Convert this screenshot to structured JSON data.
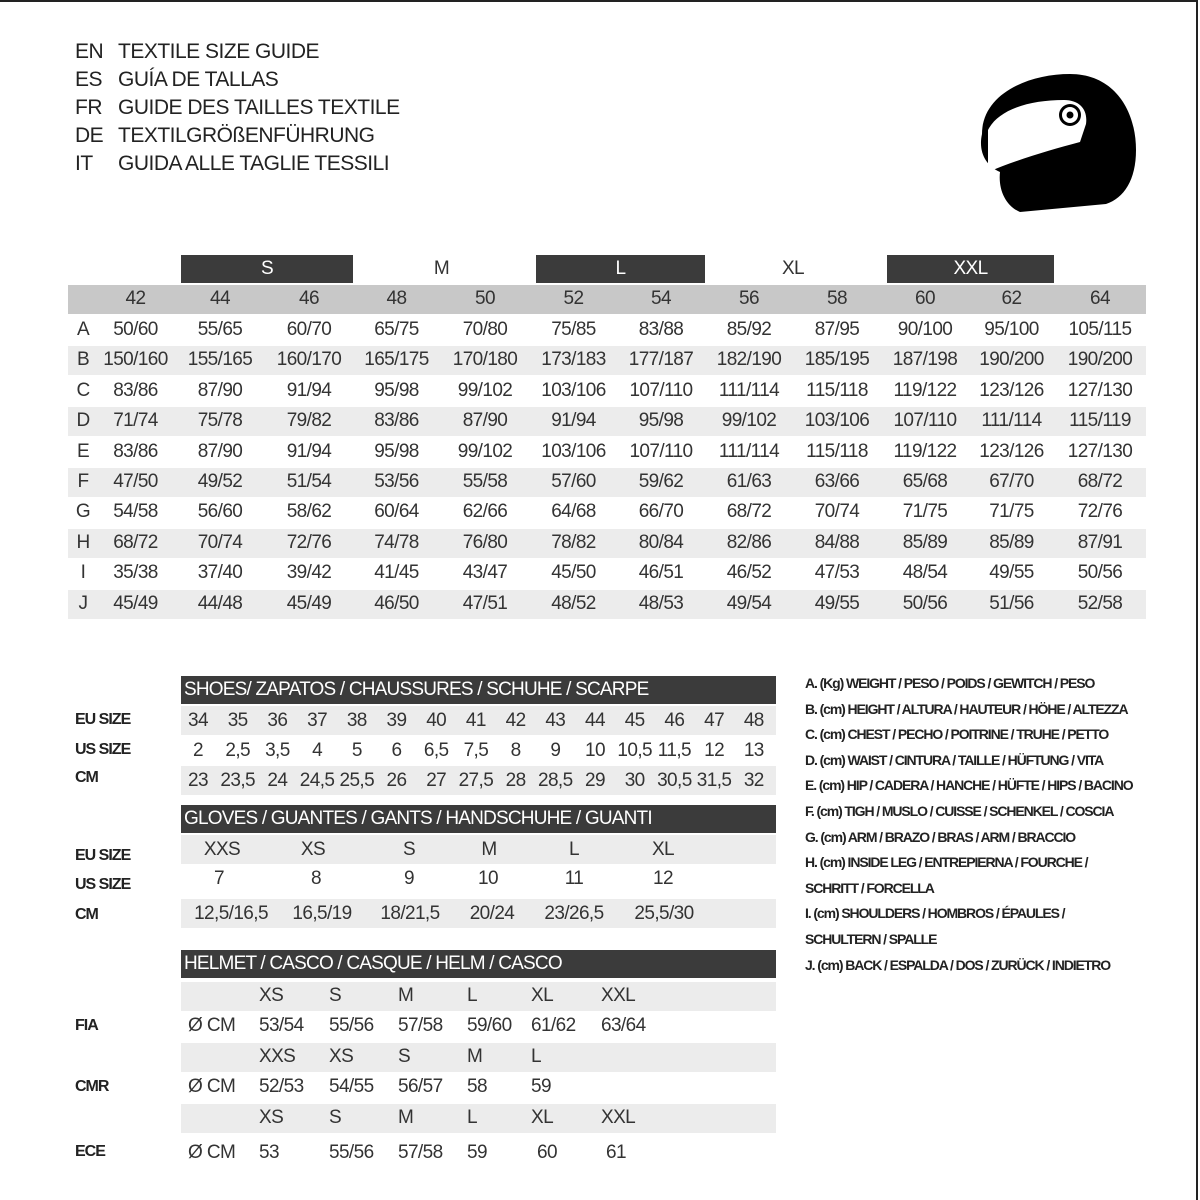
{
  "title_lines": [
    {
      "code": "EN",
      "text": "TEXTILE SIZE GUIDE"
    },
    {
      "code": "ES",
      "text": "GUÍA DE TALLAS"
    },
    {
      "code": "FR",
      "text": "GUIDE DES TAILLES TEXTILE"
    },
    {
      "code": "DE",
      "text": "TEXTILGRÖßENFÜHRUNG"
    },
    {
      "code": "IT",
      "text": "GUIDA ALLE TAGLIE TESSILI"
    }
  ],
  "icon": "helmet-icon",
  "textile": {
    "size_groups": [
      "S",
      "M",
      "L",
      "XL",
      "XXL"
    ],
    "sizes": [
      "42",
      "44",
      "46",
      "48",
      "50",
      "52",
      "54",
      "56",
      "58",
      "60",
      "62",
      "64"
    ],
    "rows": [
      {
        "label": "A",
        "values": [
          "50/60",
          "55/65",
          "60/70",
          "65/75",
          "70/80",
          "75/85",
          "83/88",
          "85/92",
          "87/95",
          "90/100",
          "95/100",
          "105/115"
        ]
      },
      {
        "label": "B",
        "values": [
          "150/160",
          "155/165",
          "160/170",
          "165/175",
          "170/180",
          "173/183",
          "177/187",
          "182/190",
          "185/195",
          "187/198",
          "190/200",
          "190/200"
        ]
      },
      {
        "label": "C",
        "values": [
          "83/86",
          "87/90",
          "91/94",
          "95/98",
          "99/102",
          "103/106",
          "107/110",
          "111/114",
          "115/118",
          "119/122",
          "123/126",
          "127/130"
        ]
      },
      {
        "label": "D",
        "values": [
          "71/74",
          "75/78",
          "79/82",
          "83/86",
          "87/90",
          "91/94",
          "95/98",
          "99/102",
          "103/106",
          "107/110",
          "111/114",
          "115/119"
        ]
      },
      {
        "label": "E",
        "values": [
          "83/86",
          "87/90",
          "91/94",
          "95/98",
          "99/102",
          "103/106",
          "107/110",
          "111/114",
          "115/118",
          "119/122",
          "123/126",
          "127/130"
        ]
      },
      {
        "label": "F",
        "values": [
          "47/50",
          "49/52",
          "51/54",
          "53/56",
          "55/58",
          "57/60",
          "59/62",
          "61/63",
          "63/66",
          "65/68",
          "67/70",
          "68/72"
        ]
      },
      {
        "label": "G",
        "values": [
          "54/58",
          "56/60",
          "58/62",
          "60/64",
          "62/66",
          "64/68",
          "66/70",
          "68/72",
          "70/74",
          "71/75",
          "71/75",
          "72/76"
        ]
      },
      {
        "label": "H",
        "values": [
          "68/72",
          "70/74",
          "72/76",
          "74/78",
          "76/80",
          "78/82",
          "80/84",
          "82/86",
          "84/88",
          "85/89",
          "85/89",
          "87/91"
        ]
      },
      {
        "label": "I",
        "values": [
          "35/38",
          "37/40",
          "39/42",
          "41/45",
          "43/47",
          "45/50",
          "46/51",
          "46/52",
          "47/53",
          "48/54",
          "49/55",
          "50/56"
        ]
      },
      {
        "label": "J",
        "values": [
          "45/49",
          "44/48",
          "45/49",
          "46/50",
          "47/51",
          "48/52",
          "48/53",
          "49/54",
          "49/55",
          "50/56",
          "51/56",
          "52/58"
        ]
      }
    ]
  },
  "shoes": {
    "title": "SHOES/ ZAPATOS / CHAUSSURES / SCHUHE / SCARPE",
    "rows": [
      {
        "label": "EU SIZE",
        "values": [
          "34",
          "35",
          "36",
          "37",
          "38",
          "39",
          "40",
          "41",
          "42",
          "43",
          "44",
          "45",
          "46",
          "47",
          "48"
        ]
      },
      {
        "label": "US SIZE",
        "values": [
          "2",
          "2,5",
          "3,5",
          "4",
          "5",
          "6",
          "6,5",
          "7,5",
          "8",
          "9",
          "10",
          "10,5",
          "11,5",
          "12",
          "13"
        ]
      },
      {
        "label": "CM",
        "values": [
          "23",
          "23,5",
          "24",
          "24,5",
          "25,5",
          "26",
          "27",
          "27,5",
          "28",
          "28,5",
          "29",
          "30",
          "30,5",
          "31,5",
          "32"
        ]
      }
    ]
  },
  "gloves": {
    "title": "GLOVES / GUANTES / GANTS / HANDSCHUHE / GUANTI",
    "rows": [
      {
        "label": "EU SIZE",
        "values": [
          "XXS",
          "XS",
          "S",
          "M",
          "L",
          "XL"
        ]
      },
      {
        "label": "US SIZE",
        "values": [
          "7",
          "8",
          "9",
          "10",
          "11",
          "12"
        ]
      },
      {
        "label": "CM",
        "values": [
          "12,5/16,5",
          "16,5/19",
          "18/21,5",
          "20/24",
          "23/26,5",
          "25,5/30"
        ]
      }
    ]
  },
  "helmet": {
    "title": "HELMET / CASCO / CASQUE / HELM / CASCO",
    "standards": [
      {
        "label": "FIA",
        "unit": "Ø CM",
        "sizes": [
          "XS",
          "S",
          "M",
          "L",
          "XL",
          "XXL"
        ],
        "values": [
          "53/54",
          "55/56",
          "57/58",
          "59/60",
          "61/62",
          "63/64"
        ]
      },
      {
        "label": "CMR",
        "unit": "Ø CM",
        "sizes": [
          "XXS",
          "XS",
          "S",
          "M",
          "L"
        ],
        "values": [
          "52/53",
          "54/55",
          "56/57",
          "58",
          "59"
        ]
      },
      {
        "label": "ECE",
        "unit": "Ø CM",
        "sizes": [
          "XS",
          "S",
          "M",
          "L",
          "XL",
          "XXL"
        ],
        "values": [
          "53",
          "55/56",
          "57/58",
          "59",
          "60",
          "61"
        ]
      }
    ]
  },
  "legend": [
    "A. (Kg) WEIGHT / PESO / POIDS / GEWITCH / PESO",
    "B. (cm) HEIGHT / ALTURA / HAUTEUR / HÖHE / ALTEZZA",
    "C. (cm) CHEST / PECHO / POITRINE / TRUHE / PETTO",
    "D. (cm) WAIST / CINTURA / TAILLE / HÜFTUNG / VITA",
    "E. (cm) HIP / CADERA / HANCHE / HÜFTE / HIPS /  BACINO",
    "F.  (cm) TIGH / MUSLO / CUISSE / SCHENKEL / COSCIA",
    "G. (cm) ARM  / BRAZO / BRAS / ARM / BRACCIO",
    "H. (cm) INSIDE LEG / ENTREPIERNA / FOURCHE /",
    "SCHRITT / FORCELLA",
    "I.  (cm) SHOULDERS / HOMBROS / ÉPAULES /",
    "SCHULTERN / SPALLE",
    "J. (cm) BACK / ESPALDA / DOS / ZURÜCK / INDIETRO"
  ],
  "colors": {
    "dark_band": "#3b3b3b",
    "size_row": "#c8c8c8",
    "stripe": "#ececec"
  }
}
